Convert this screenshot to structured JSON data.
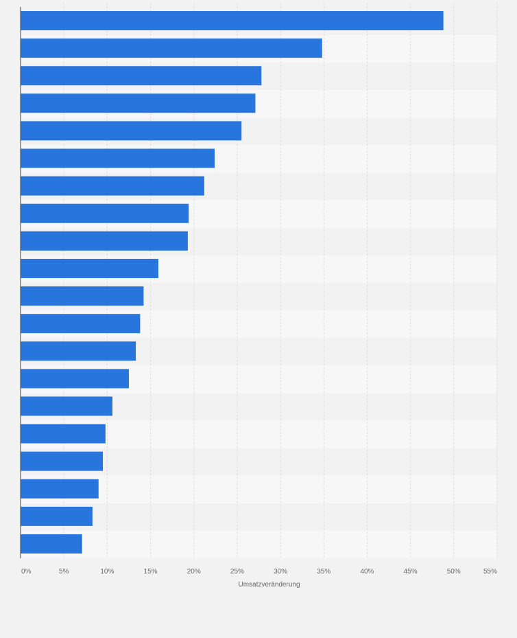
{
  "chart_data": {
    "type": "bar",
    "orientation": "horizontal",
    "xlabel": "Umsatzveränderung",
    "xlim": [
      0,
      55
    ],
    "x_ticks": [
      0,
      5,
      10,
      15,
      20,
      25,
      30,
      35,
      40,
      45,
      50,
      55
    ],
    "x_tick_labels": [
      "0%",
      "5%",
      "10%",
      "15%",
      "20%",
      "25%",
      "30%",
      "35%",
      "40%",
      "45%",
      "50%",
      "55%"
    ],
    "grid": true,
    "values": [
      48.8,
      34.8,
      27.8,
      27.1,
      25.5,
      22.4,
      21.2,
      19.4,
      19.3,
      15.9,
      14.2,
      13.8,
      13.3,
      12.5,
      10.6,
      9.8,
      9.5,
      9.0,
      8.3,
      7.1
    ],
    "bar_color": "#2876dd",
    "row_colors": [
      "#f2f2f2",
      "#f7f7f7"
    ]
  }
}
